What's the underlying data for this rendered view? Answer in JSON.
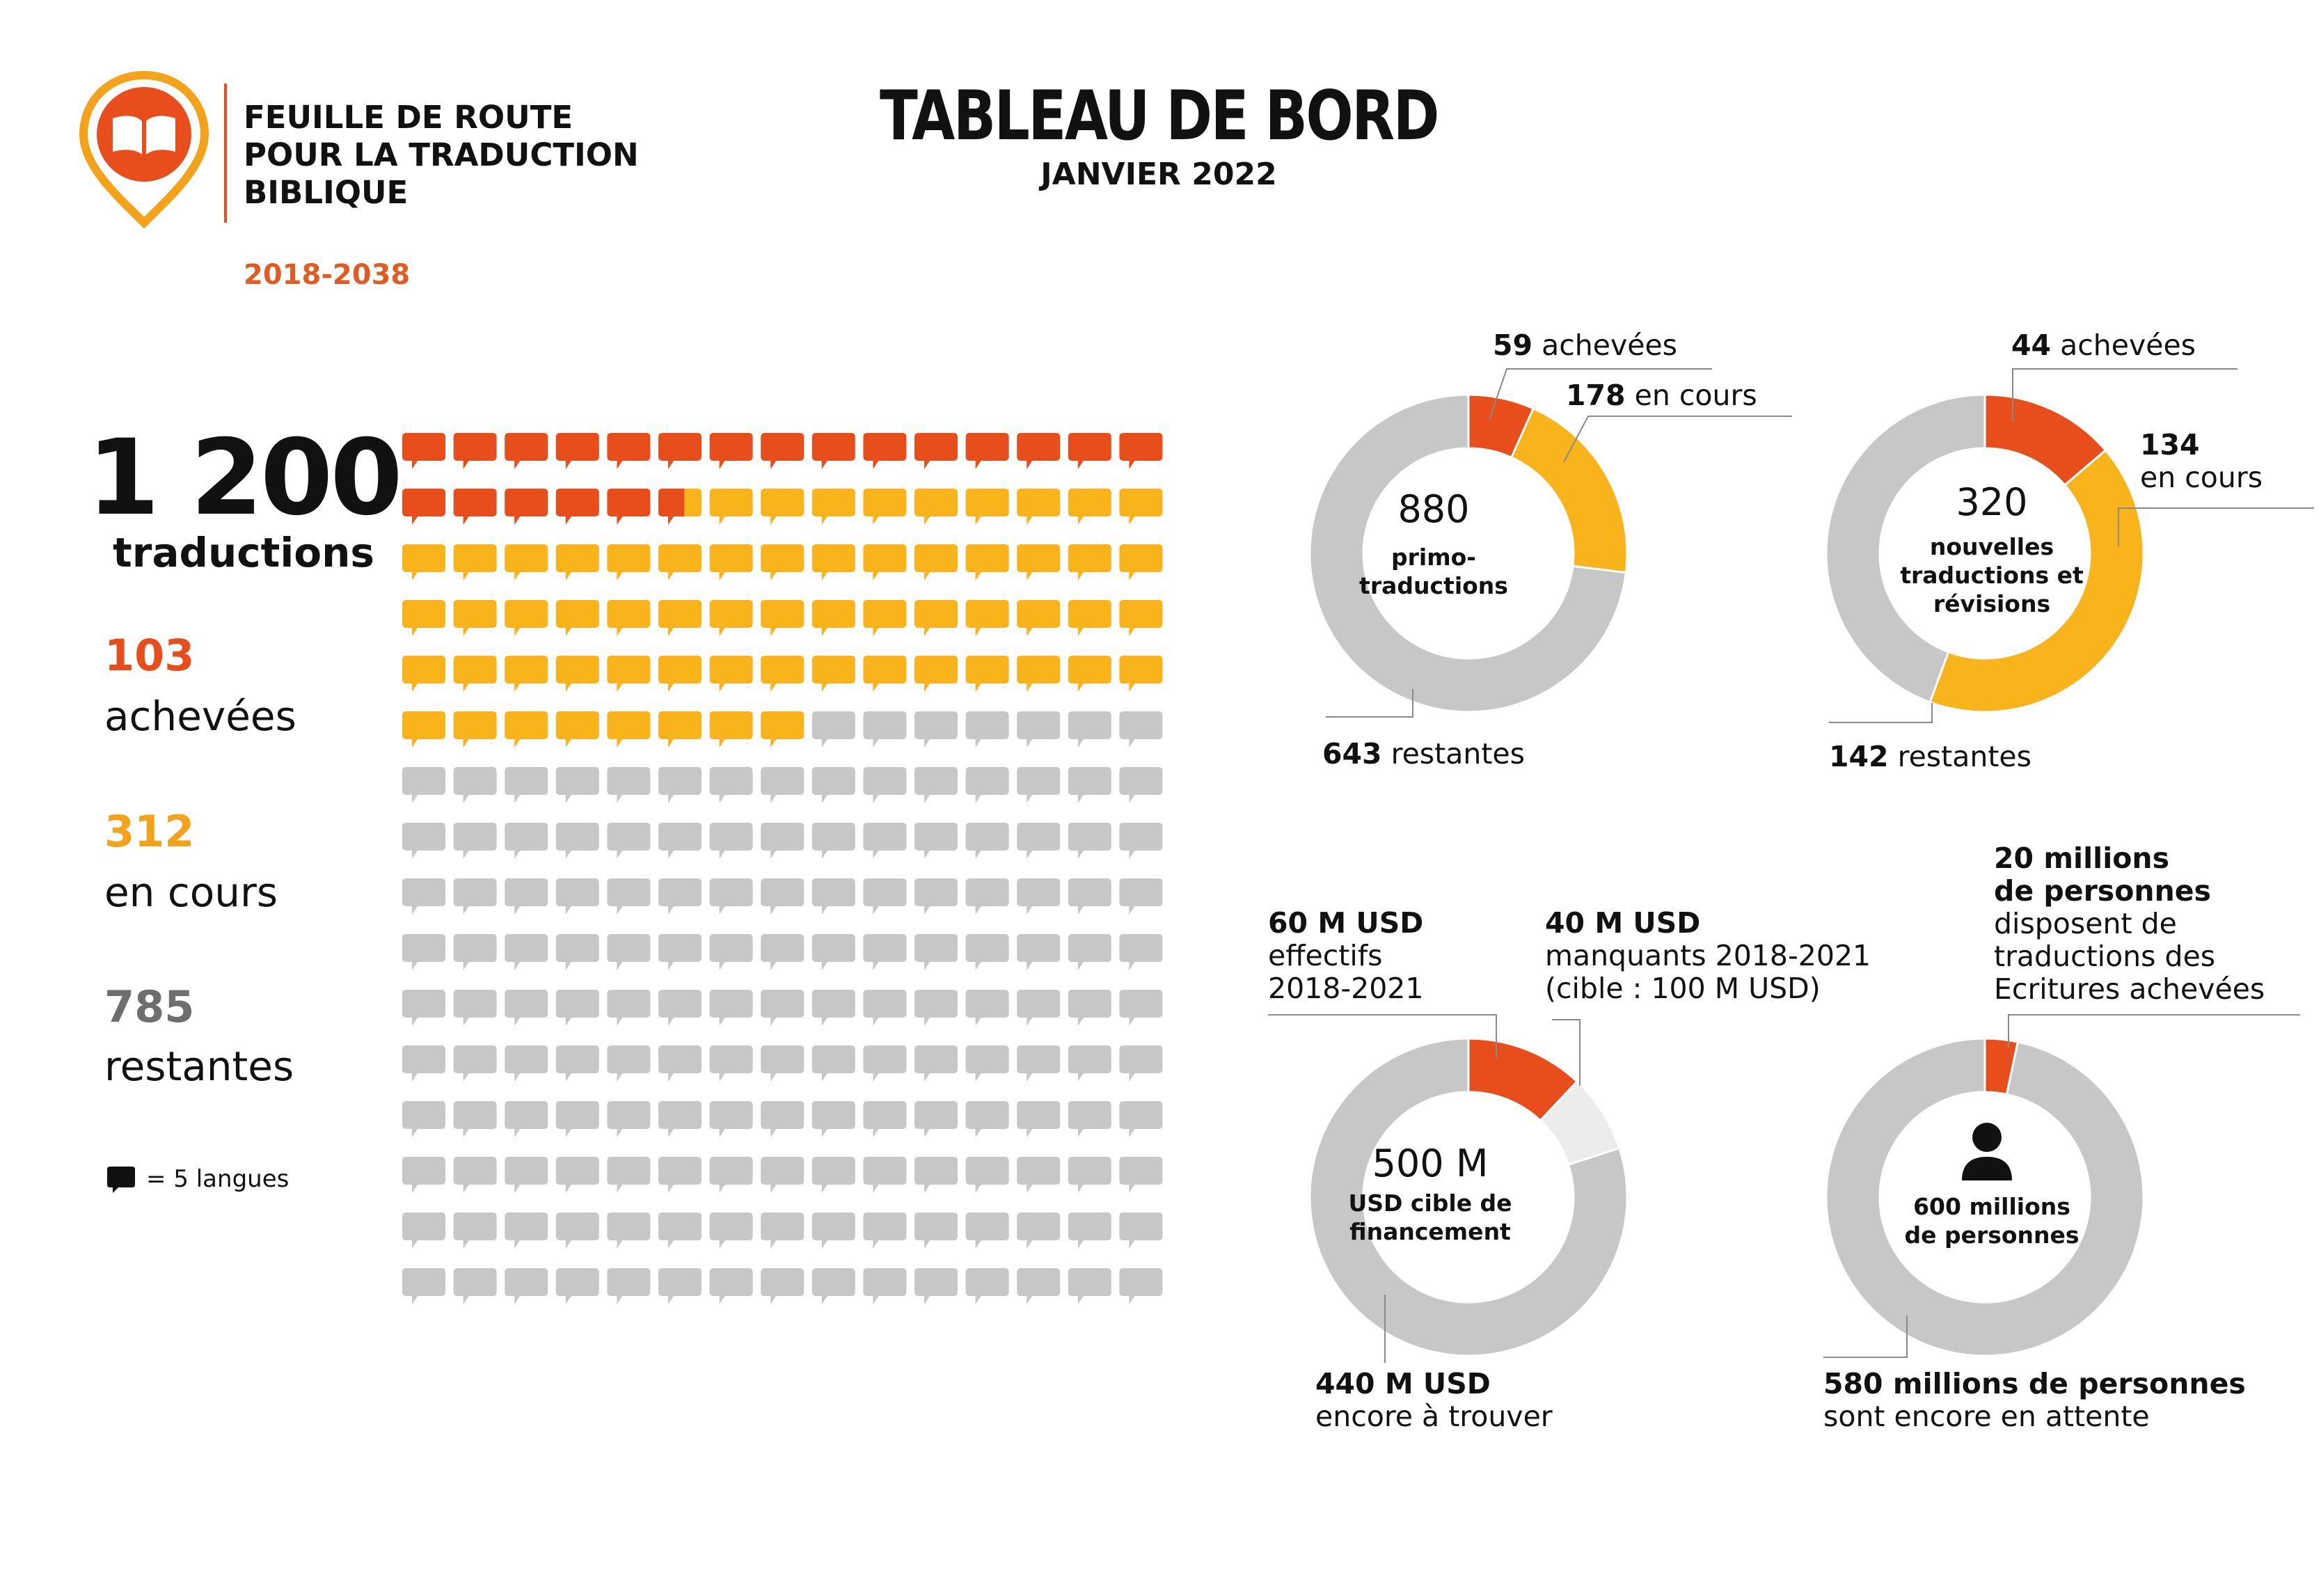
{
  "header": {
    "org_lines": [
      "FEUILLE DE ROUTE",
      "POUR LA TRADUCTION",
      "BIBLIQUE"
    ],
    "years": "2018-2038",
    "title": "TABLEAU DE BORD",
    "date": "JANVIER 2022"
  },
  "stats": {
    "total": "1 200",
    "total_label": "traductions",
    "items": [
      {
        "value": "103",
        "label": "achevées",
        "color": "#e84e1b"
      },
      {
        "value": "312",
        "label": "en cours",
        "color": "#f3a21a"
      },
      {
        "value": "785",
        "label": "restantes",
        "color": "#6e6e6e"
      }
    ],
    "legend": "= 5 langues"
  },
  "colors": {
    "completed": "#e84e1b",
    "in_progress": "#f9b31b",
    "remaining": "#c8c7c7",
    "light": "#ececec"
  },
  "chart_data": [
    {
      "type": "waffle",
      "unit": 5,
      "rows": 16,
      "cols": 15,
      "series": [
        {
          "name": "achevées",
          "value": 103
        },
        {
          "name": "en cours",
          "value": 312
        },
        {
          "name": "restantes",
          "value": 785
        }
      ]
    },
    {
      "type": "pie",
      "center_value": "880",
      "center_label": [
        "primo-",
        "traductions"
      ],
      "slices": [
        {
          "name": "achevées",
          "value": 59,
          "color": "#e84e1b"
        },
        {
          "name": "en cours",
          "value": 178,
          "color": "#f9b31b"
        },
        {
          "name": "restantes",
          "value": 643,
          "color": "#c8c7c7"
        }
      ],
      "callouts": [
        {
          "bold": "59",
          "text": " achevées"
        },
        {
          "bold": "178",
          "text": " en cours"
        },
        {
          "bold": "643",
          "text": " restantes"
        }
      ]
    },
    {
      "type": "pie",
      "center_value": "320",
      "center_label": [
        "nouvelles",
        "traductions et",
        "révisions"
      ],
      "slices": [
        {
          "name": "achevées",
          "value": 44,
          "color": "#e84e1b"
        },
        {
          "name": "en cours",
          "value": 134,
          "color": "#f9b31b"
        },
        {
          "name": "restantes",
          "value": 142,
          "color": "#c8c7c7"
        }
      ],
      "callouts": [
        {
          "bold": "44",
          "text": " achevées"
        },
        {
          "bold": "134",
          "text": "en cours"
        },
        {
          "bold": "142",
          "text": " restantes"
        }
      ]
    },
    {
      "type": "pie",
      "center_value": "500 M",
      "center_label": [
        "USD cible de",
        "financement"
      ],
      "slices": [
        {
          "name": "effectifs 2018-2021",
          "value": 60,
          "color": "#e84e1b"
        },
        {
          "name": "manquants 2018-2021",
          "value": 40,
          "color": "#ececec"
        },
        {
          "name": "encore à trouver",
          "value": 400,
          "color": "#c8c7c7"
        }
      ],
      "callouts": [
        {
          "bold": "60 M USD",
          "lines": [
            "effectifs",
            "2018-2021"
          ]
        },
        {
          "bold": "40 M USD",
          "lines": [
            "manquants 2018-2021",
            "(cible : 100 M USD)"
          ]
        },
        {
          "bold": "440 M USD",
          "lines": [
            "encore à trouver"
          ]
        }
      ]
    },
    {
      "type": "pie",
      "center_value": "",
      "center_label": [
        "600 millions",
        "de personnes"
      ],
      "center_icon": "person-icon",
      "slices": [
        {
          "name": "disposent de traductions des Ecritures achevées",
          "value": 20,
          "color": "#e84e1b"
        },
        {
          "name": "sont encore en attente",
          "value": 580,
          "color": "#c8c7c7"
        }
      ],
      "callouts": [
        {
          "bold": [
            "20 millions",
            "de personnes"
          ],
          "lines": [
            "disposent de",
            "traductions des",
            "Ecritures achevées"
          ]
        },
        {
          "bold": "580 millions de personnes",
          "lines": [
            "sont encore en attente"
          ]
        }
      ]
    }
  ]
}
